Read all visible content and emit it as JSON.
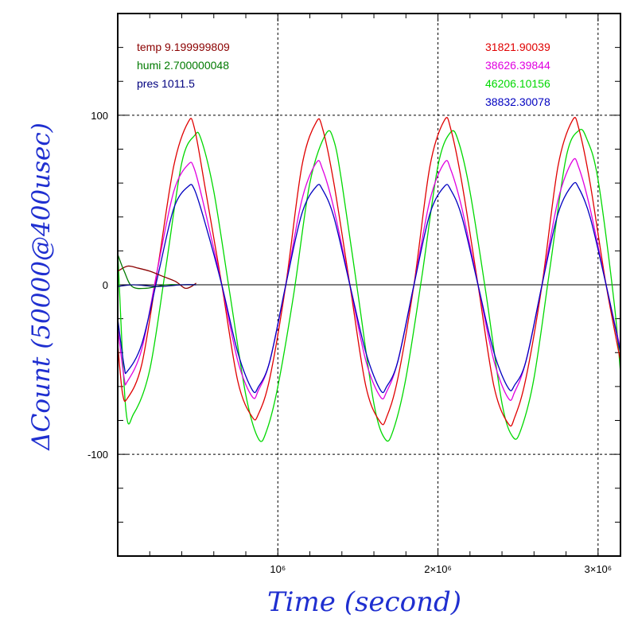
{
  "chart_data": {
    "type": "line",
    "xlabel": "Time (second)",
    "ylabel": "ΔCount (50000@400usec)",
    "xlim": [
      0,
      3140000
    ],
    "ylim": [
      -160,
      160
    ],
    "x_ticks": [
      {
        "value": 1000000,
        "label": "10⁶"
      },
      {
        "value": 2000000,
        "label": "2×10⁶"
      },
      {
        "value": 3000000,
        "label": "3×10⁶"
      }
    ],
    "y_ticks": [
      {
        "value": 100,
        "label": "100"
      },
      {
        "value": 0,
        "label": "0"
      },
      {
        "value": -100,
        "label": "-100"
      }
    ],
    "grid": true,
    "legend_left": [
      {
        "label": "temp 9.199999809",
        "color": "#8b0000"
      },
      {
        "label": "humi 2.700000048",
        "color": "#007a00"
      },
      {
        "label": "pres 1011.5",
        "color": "#00007f"
      }
    ],
    "legend_right": [
      {
        "label": "31821.90039",
        "color": "#e00000"
      },
      {
        "label": "38626.39844",
        "color": "#e000e0"
      },
      {
        "label": "46206.10156",
        "color": "#00d800"
      },
      {
        "label": "38832.30078",
        "color": "#0000c0"
      }
    ],
    "series": [
      {
        "color": "#00d800",
        "values": [
          [
            0,
            20
          ],
          [
            50000,
            -73
          ],
          [
            100000,
            -76
          ],
          [
            200000,
            -50
          ],
          [
            300000,
            10
          ],
          [
            400000,
            72
          ],
          [
            480000,
            88
          ],
          [
            520000,
            86
          ],
          [
            600000,
            55
          ],
          [
            700000,
            -5
          ],
          [
            800000,
            -65
          ],
          [
            880000,
            -91
          ],
          [
            930000,
            -86
          ],
          [
            1000000,
            -60
          ],
          [
            1100000,
            -5
          ],
          [
            1200000,
            60
          ],
          [
            1300000,
            89
          ],
          [
            1350000,
            85
          ],
          [
            1400000,
            60
          ],
          [
            1500000,
            -5
          ],
          [
            1600000,
            -70
          ],
          [
            1670000,
            -91
          ],
          [
            1720000,
            -86
          ],
          [
            1800000,
            -55
          ],
          [
            1900000,
            5
          ],
          [
            2000000,
            70
          ],
          [
            2080000,
            90
          ],
          [
            2130000,
            84
          ],
          [
            2200000,
            55
          ],
          [
            2300000,
            -5
          ],
          [
            2400000,
            -70
          ],
          [
            2470000,
            -90
          ],
          [
            2520000,
            -85
          ],
          [
            2600000,
            -55
          ],
          [
            2700000,
            10
          ],
          [
            2800000,
            75
          ],
          [
            2880000,
            91
          ],
          [
            2930000,
            86
          ],
          [
            3000000,
            62
          ],
          [
            3100000,
            -10
          ],
          [
            3140000,
            -52
          ]
        ]
      },
      {
        "color": "#e00000",
        "values": [
          [
            0,
            -35
          ],
          [
            30000,
            -64
          ],
          [
            60000,
            -67
          ],
          [
            150000,
            -47
          ],
          [
            250000,
            10
          ],
          [
            350000,
            70
          ],
          [
            440000,
            96
          ],
          [
            480000,
            92
          ],
          [
            550000,
            55
          ],
          [
            650000,
            0
          ],
          [
            750000,
            -57
          ],
          [
            840000,
            -78
          ],
          [
            880000,
            -76
          ],
          [
            950000,
            -55
          ],
          [
            1050000,
            0
          ],
          [
            1150000,
            70
          ],
          [
            1240000,
            96
          ],
          [
            1280000,
            92
          ],
          [
            1350000,
            60
          ],
          [
            1450000,
            0
          ],
          [
            1550000,
            -60
          ],
          [
            1640000,
            -81
          ],
          [
            1680000,
            -78
          ],
          [
            1750000,
            -55
          ],
          [
            1850000,
            0
          ],
          [
            1950000,
            70
          ],
          [
            2040000,
            97
          ],
          [
            2080000,
            92
          ],
          [
            2150000,
            60
          ],
          [
            2250000,
            0
          ],
          [
            2350000,
            -60
          ],
          [
            2440000,
            -82
          ],
          [
            2480000,
            -78
          ],
          [
            2550000,
            -55
          ],
          [
            2650000,
            0
          ],
          [
            2750000,
            70
          ],
          [
            2840000,
            97
          ],
          [
            2880000,
            92
          ],
          [
            2950000,
            60
          ],
          [
            3050000,
            0
          ],
          [
            3140000,
            -45
          ]
        ]
      },
      {
        "color": "#e000e0",
        "values": [
          [
            0,
            -25
          ],
          [
            40000,
            -55
          ],
          [
            60000,
            -57
          ],
          [
            150000,
            -38
          ],
          [
            250000,
            10
          ],
          [
            350000,
            55
          ],
          [
            440000,
            71
          ],
          [
            480000,
            68
          ],
          [
            550000,
            42
          ],
          [
            650000,
            0
          ],
          [
            750000,
            -45
          ],
          [
            840000,
            -66
          ],
          [
            880000,
            -62
          ],
          [
            950000,
            -45
          ],
          [
            1050000,
            0
          ],
          [
            1150000,
            50
          ],
          [
            1240000,
            72
          ],
          [
            1280000,
            68
          ],
          [
            1350000,
            45
          ],
          [
            1450000,
            0
          ],
          [
            1550000,
            -45
          ],
          [
            1640000,
            -66
          ],
          [
            1680000,
            -63
          ],
          [
            1750000,
            -45
          ],
          [
            1850000,
            0
          ],
          [
            1950000,
            50
          ],
          [
            2040000,
            72
          ],
          [
            2080000,
            68
          ],
          [
            2150000,
            45
          ],
          [
            2250000,
            0
          ],
          [
            2350000,
            -45
          ],
          [
            2440000,
            -67
          ],
          [
            2480000,
            -63
          ],
          [
            2550000,
            -45
          ],
          [
            2650000,
            0
          ],
          [
            2750000,
            50
          ],
          [
            2840000,
            73
          ],
          [
            2880000,
            69
          ],
          [
            2950000,
            45
          ],
          [
            3050000,
            0
          ],
          [
            3140000,
            -38
          ]
        ]
      },
      {
        "color": "#0000c0",
        "values": [
          [
            0,
            -20
          ],
          [
            40000,
            -48
          ],
          [
            60000,
            -51
          ],
          [
            150000,
            -35
          ],
          [
            250000,
            5
          ],
          [
            350000,
            45
          ],
          [
            440000,
            58
          ],
          [
            480000,
            56
          ],
          [
            550000,
            35
          ],
          [
            650000,
            0
          ],
          [
            750000,
            -40
          ],
          [
            840000,
            -62
          ],
          [
            880000,
            -60
          ],
          [
            950000,
            -45
          ],
          [
            1050000,
            0
          ],
          [
            1150000,
            42
          ],
          [
            1240000,
            58
          ],
          [
            1280000,
            56
          ],
          [
            1350000,
            40
          ],
          [
            1450000,
            0
          ],
          [
            1550000,
            -40
          ],
          [
            1640000,
            -62
          ],
          [
            1680000,
            -60
          ],
          [
            1750000,
            -45
          ],
          [
            1850000,
            0
          ],
          [
            1950000,
            42
          ],
          [
            2040000,
            58
          ],
          [
            2080000,
            56
          ],
          [
            2150000,
            40
          ],
          [
            2250000,
            0
          ],
          [
            2350000,
            -40
          ],
          [
            2440000,
            -61
          ],
          [
            2480000,
            -59
          ],
          [
            2550000,
            -45
          ],
          [
            2650000,
            0
          ],
          [
            2750000,
            42
          ],
          [
            2840000,
            59
          ],
          [
            2880000,
            57
          ],
          [
            2950000,
            40
          ],
          [
            3050000,
            0
          ],
          [
            3140000,
            -40
          ]
        ]
      },
      {
        "color": "#8b0000",
        "values": [
          [
            0,
            8
          ],
          [
            60000,
            11
          ],
          [
            120000,
            10
          ],
          [
            200000,
            8
          ],
          [
            280000,
            5
          ],
          [
            360000,
            2
          ],
          [
            420000,
            -2
          ],
          [
            460000,
            -1
          ],
          [
            490000,
            1
          ]
        ]
      },
      {
        "color": "#007a00",
        "values": [
          [
            0,
            18
          ],
          [
            40000,
            8
          ],
          [
            90000,
            -1
          ],
          [
            180000,
            -2
          ],
          [
            300000,
            0
          ],
          [
            400000,
            0
          ],
          [
            490000,
            0
          ]
        ]
      },
      {
        "color": "#00007f",
        "values": [
          [
            0,
            -1
          ],
          [
            100000,
            0
          ],
          [
            250000,
            -1
          ],
          [
            400000,
            0
          ],
          [
            490000,
            0
          ]
        ]
      }
    ]
  }
}
